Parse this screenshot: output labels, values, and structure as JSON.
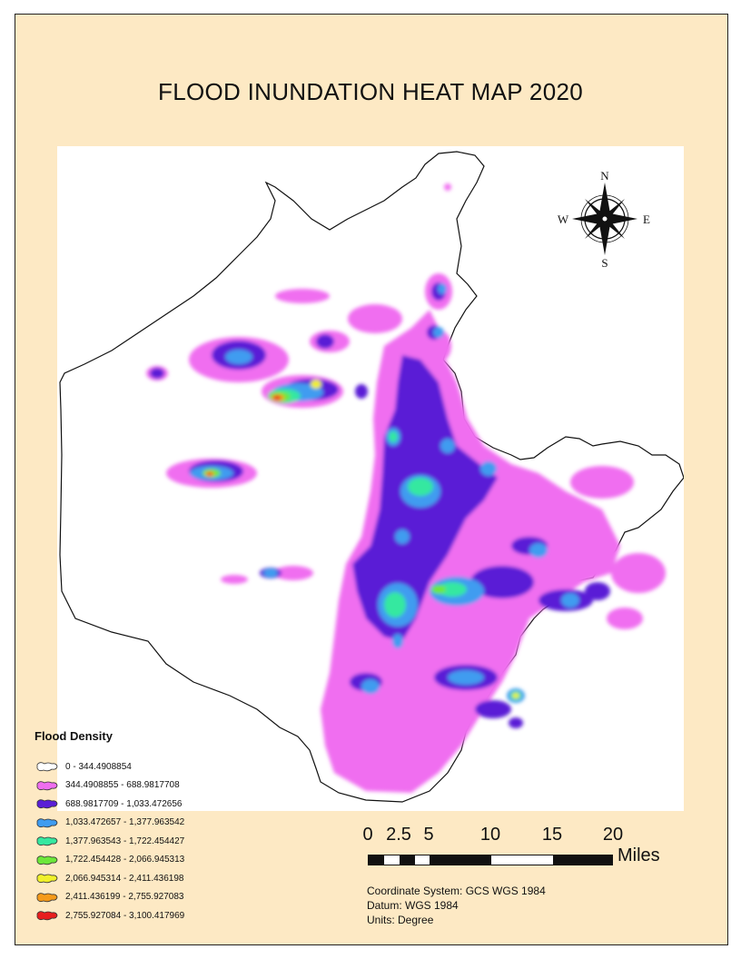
{
  "title": "FLOOD INUNDATION HEAT MAP 2020",
  "compass": {
    "n": "N",
    "s": "S",
    "e": "E",
    "w": "W",
    "icon": "compass-rose-icon"
  },
  "legend": {
    "title": "Flood Density",
    "items": [
      {
        "label": "0 - 344.4908854",
        "color": "#ffffff"
      },
      {
        "label": "344.4908855 - 688.9817708",
        "color": "#f06ef0"
      },
      {
        "label": "688.9817709 - 1,033.472656",
        "color": "#5a1fd6"
      },
      {
        "label": "1,033.472657 - 1,377.963542",
        "color": "#3f9cf0"
      },
      {
        "label": "1,377.963543 - 1,722.454427",
        "color": "#35e8a0"
      },
      {
        "label": "1,722.454428 - 2,066.945313",
        "color": "#6de83a"
      },
      {
        "label": "2,066.945314 - 2,411.436198",
        "color": "#f0f02a"
      },
      {
        "label": "2,411.436199 - 2,755.927083",
        "color": "#f59a1a"
      },
      {
        "label": "2,755.927084 - 3,100.417969",
        "color": "#e81e1e"
      }
    ]
  },
  "scalebar": {
    "ticks": [
      "0",
      "2.5",
      "5",
      "10",
      "15",
      "20"
    ],
    "unit": "Miles"
  },
  "coordinate_info": {
    "system": "Coordinate System: GCS WGS 1984",
    "datum": "Datum: WGS 1984",
    "units": "Units: Degree"
  }
}
